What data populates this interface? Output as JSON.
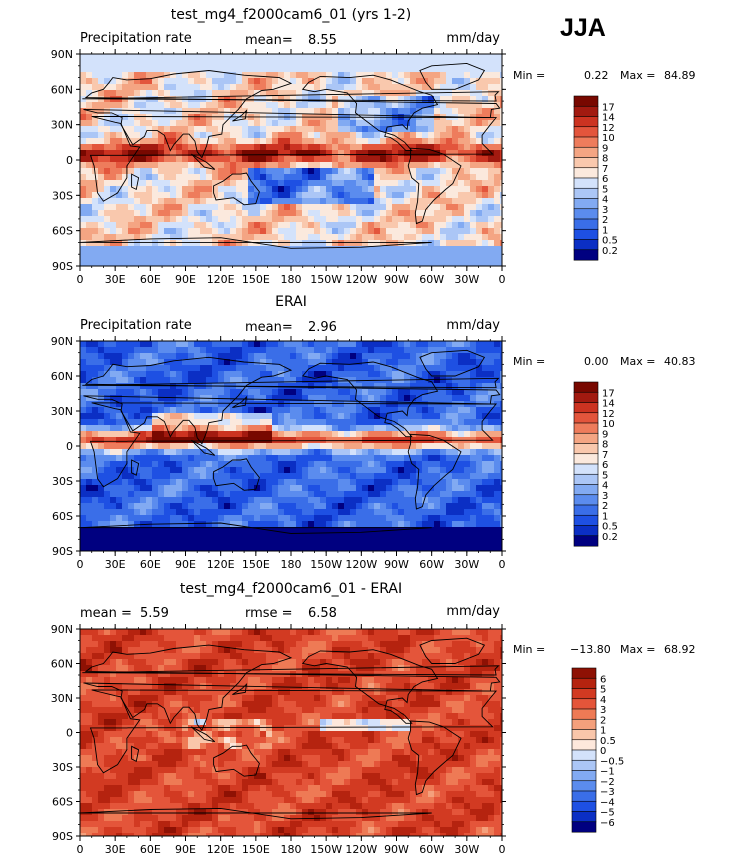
{
  "season": "JJA",
  "panels": [
    {
      "title": "test_mg4_f2000cam6_01 (yrs 1-2)",
      "left_label": "Precipitation rate",
      "stat1_label": "mean=",
      "stat1_value": "8.55",
      "stat2_label": "",
      "stat2_value": "",
      "units": "mm/day",
      "min_label": "Min =",
      "min_value": "0.22",
      "max_label": "Max =",
      "max_value": "84.89",
      "colorbar": [
        "17",
        "14",
        "12",
        "10",
        "9",
        "8",
        "7",
        "6",
        "5",
        "4",
        "3",
        "2",
        "1",
        "0.5",
        "0.2"
      ],
      "field_style": "warm"
    },
    {
      "title": "ERAI",
      "left_label": "Precipitation rate",
      "stat1_label": "mean=",
      "stat1_value": "2.96",
      "stat2_label": "",
      "stat2_value": "",
      "units": "mm/day",
      "min_label": "Min =",
      "min_value": "0.00",
      "max_label": "Max =",
      "max_value": "40.83",
      "colorbar": [
        "17",
        "14",
        "12",
        "10",
        "9",
        "8",
        "7",
        "6",
        "5",
        "4",
        "3",
        "2",
        "1",
        "0.5",
        "0.2"
      ],
      "field_style": "cool"
    },
    {
      "title": "test_mg4_f2000cam6_01 - ERAI",
      "left_label": "",
      "stat1_label": "mean =",
      "stat1_value": "5.59",
      "stat2_label": "rmse =",
      "stat2_value": "6.58",
      "units": "mm/day",
      "min_label": "Min =",
      "min_value": "−13.80",
      "max_label": "Max =",
      "max_value": "68.92",
      "colorbar": [
        "6",
        "5",
        "4",
        "3",
        "2",
        "1",
        "0.5",
        "0",
        "−0.5",
        "−1",
        "−2",
        "−3",
        "−4",
        "−5",
        "−6"
      ],
      "field_style": "diff"
    }
  ],
  "lat_labels": [
    "90N",
    "60N",
    "30N",
    "0",
    "30S",
    "60S",
    "90S"
  ],
  "lon_labels": [
    "0",
    "30E",
    "60E",
    "90E",
    "120E",
    "150E",
    "180",
    "150W",
    "120W",
    "90W",
    "60W",
    "30W",
    "0"
  ],
  "colors": {
    "precip_scale": [
      "#000080",
      "#0b2fc4",
      "#1e50e3",
      "#3a6ee8",
      "#5b8cee",
      "#82aaf2",
      "#abc6f6",
      "#d3e2fb",
      "#fbe9dd",
      "#f9c8ad",
      "#f4a583",
      "#ee7c5c",
      "#e3553c",
      "#cc3321",
      "#a21a10",
      "#780800"
    ],
    "diff_scale": [
      "#000080",
      "#0b2fc4",
      "#1e50e3",
      "#3a6ee8",
      "#5b8cee",
      "#82aaf2",
      "#abc6f6",
      "#d3e2fb",
      "#fde8dc",
      "#f9c6aa",
      "#f4a07c",
      "#ee7a55",
      "#e4553a",
      "#d23a22",
      "#b5230f",
      "#8e1104"
    ]
  }
}
